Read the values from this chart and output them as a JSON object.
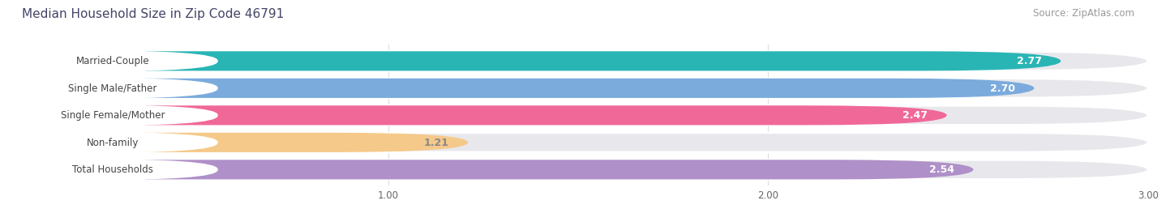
{
  "title": "Median Household Size in Zip Code 46791",
  "source": "Source: ZipAtlas.com",
  "categories": [
    "Married-Couple",
    "Single Male/Father",
    "Single Female/Mother",
    "Non-family",
    "Total Households"
  ],
  "values": [
    2.77,
    2.7,
    2.47,
    1.21,
    2.54
  ],
  "bar_colors": [
    "#2ab5b5",
    "#7aabdc",
    "#f06898",
    "#f5c98a",
    "#b090c8"
  ],
  "bar_bg_color": "#e8e8ec",
  "label_bg_color": "#ffffff",
  "value_label_colors": [
    "white",
    "white",
    "white",
    "#888888",
    "white"
  ],
  "xlim": [
    0,
    3.0
  ],
  "xticks": [
    1.0,
    2.0,
    3.0
  ],
  "title_color": "#444466",
  "title_fontsize": 11,
  "source_fontsize": 8.5,
  "source_color": "#999999",
  "cat_fontsize": 8.5,
  "value_fontsize": 9,
  "background_color": "#ffffff"
}
